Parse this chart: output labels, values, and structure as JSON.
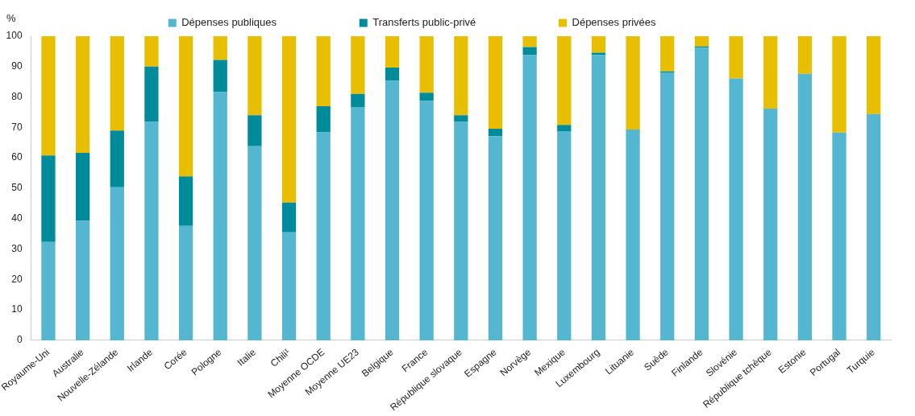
{
  "chart_data": {
    "type": "bar",
    "stacked": true,
    "ylabel": "%",
    "legend": "top",
    "grid": false,
    "categories": [
      "Royaume-Uni",
      "Australie",
      "Nouvelle-Zélande",
      "Irlande",
      "Corée",
      "Pologne",
      "Italie",
      "Chili¹",
      "Moyenne OCDE",
      "Moyenne UE23",
      "Belgique",
      "France",
      "République slovaque",
      "Espagne",
      "Norvège",
      "Mexique",
      "Luxembourg",
      "Lituanie",
      "Suède",
      "Finlande",
      "Slovénie",
      "République tchèque",
      "Estonie",
      "Portugal",
      "Turquie"
    ],
    "ylim": [
      0,
      100
    ],
    "yticks": [
      0,
      10,
      20,
      30,
      40,
      50,
      60,
      70,
      80,
      90,
      100
    ],
    "series": [
      {
        "name": "Dépenses publiques",
        "color": "#55b6d0",
        "values": [
          32.3,
          39.3,
          50.3,
          71.8,
          37.6,
          81.6,
          63.8,
          35.5,
          68.4,
          76.7,
          85.3,
          78.7,
          71.8,
          67.1,
          93.8,
          68.8,
          93.8,
          69.3,
          88.1,
          96.2,
          86.1,
          76.2,
          87.6,
          68.3,
          74.4
        ]
      },
      {
        "name": "Transferts public-privé",
        "color": "#008b9a",
        "values": [
          28.5,
          22.3,
          18.7,
          18.2,
          16.3,
          10.6,
          10.2,
          9.8,
          8.6,
          4.3,
          4.4,
          2.7,
          2.2,
          2.5,
          2.6,
          2.0,
          0.8,
          0,
          0.3,
          0.4,
          0,
          0,
          0,
          0,
          0
        ]
      },
      {
        "name": "Dépenses privées",
        "color": "#e8be00",
        "values": [
          39.2,
          38.4,
          31.0,
          10.0,
          46.1,
          7.8,
          26.0,
          54.7,
          23.0,
          19.0,
          10.3,
          18.6,
          26.0,
          30.4,
          3.6,
          29.2,
          5.4,
          30.7,
          11.6,
          3.4,
          13.9,
          23.8,
          12.4,
          31.7,
          25.6
        ]
      }
    ]
  }
}
